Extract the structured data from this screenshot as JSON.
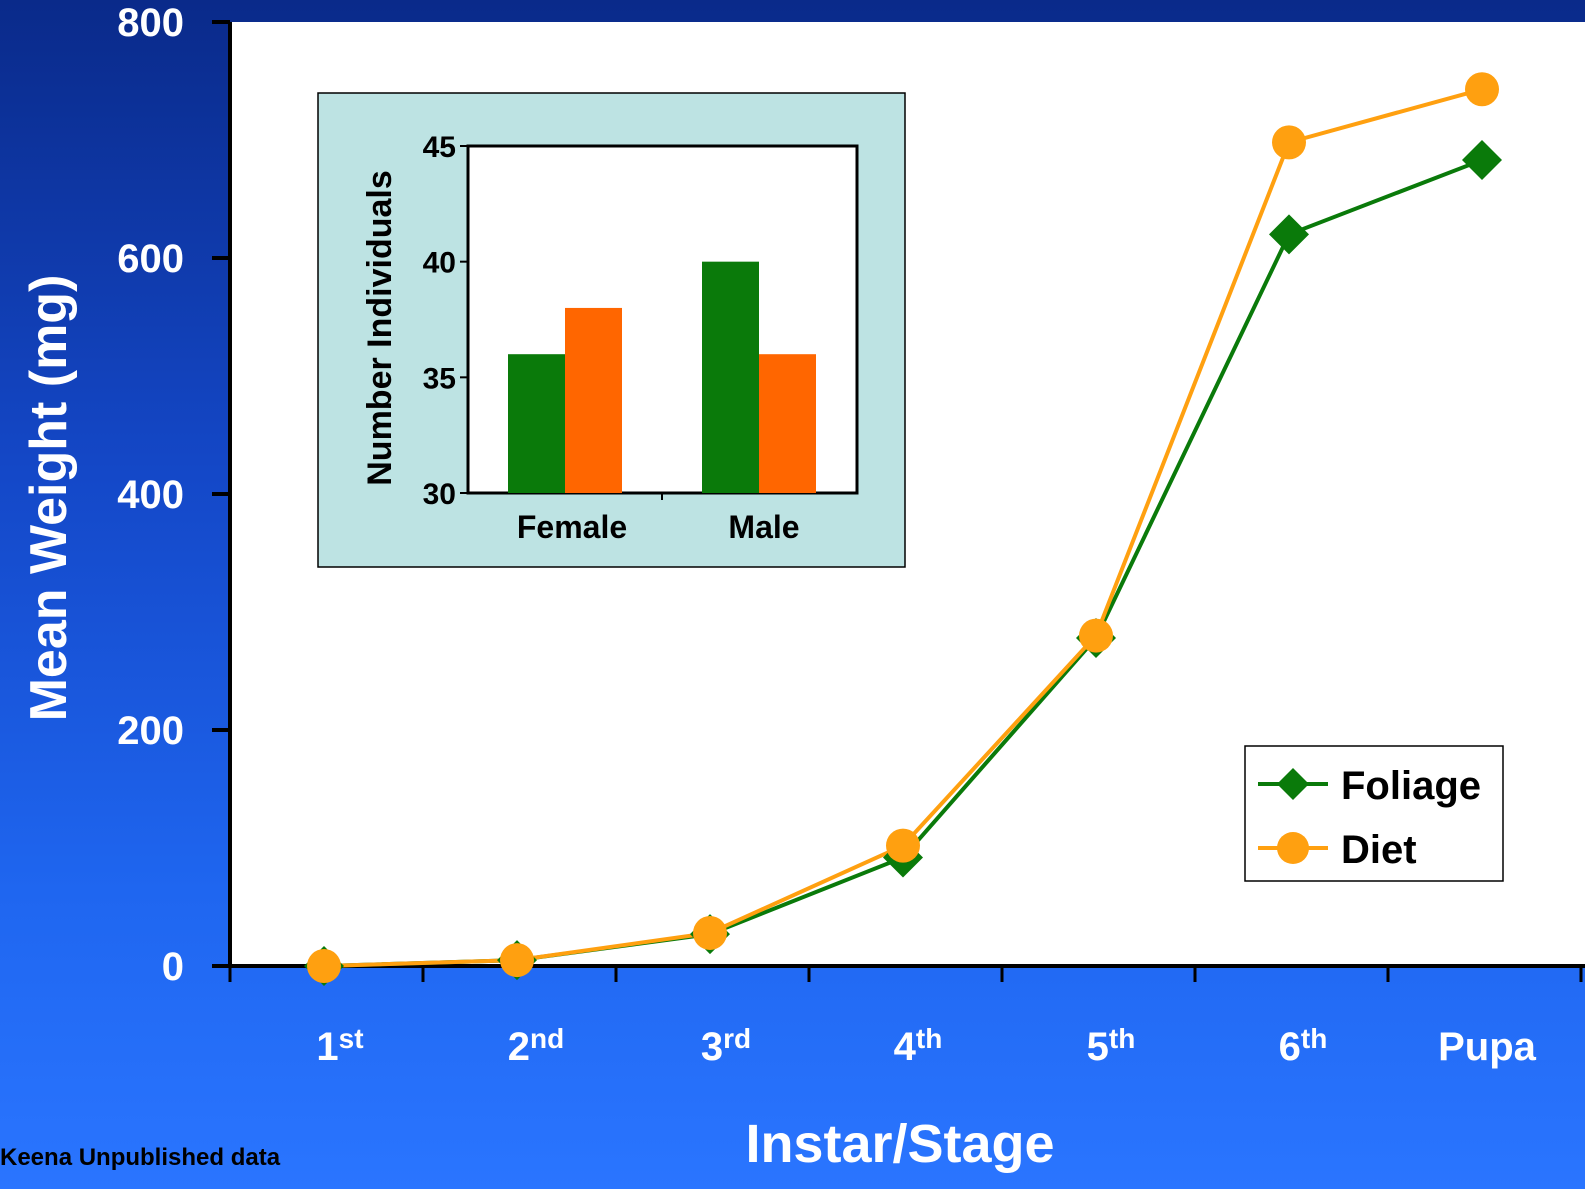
{
  "credit": "Keena Unpublished data",
  "colors": {
    "foliage": "#0a7a0a",
    "diet": "#ffa010",
    "inset_female_male_green": "#0a7a0a",
    "inset_orange": "#ff6600",
    "inset_bg": "#bde3e3"
  },
  "chart_data": [
    {
      "type": "line",
      "xlabel": "Instar/Stage",
      "ylabel": "Mean Weight (mg)",
      "categories": [
        {
          "base": "1",
          "sup": "st"
        },
        {
          "base": "2",
          "sup": "nd"
        },
        {
          "base": "3",
          "sup": "rd"
        },
        {
          "base": "4",
          "sup": "th"
        },
        {
          "base": "5",
          "sup": "th"
        },
        {
          "base": "6",
          "sup": "th"
        },
        {
          "base": "Pupa",
          "sup": ""
        }
      ],
      "yticks": [
        "0",
        "200",
        "400",
        "600",
        "800"
      ],
      "ylim": [
        0,
        800
      ],
      "grid": false,
      "legend_position": "bottom-right",
      "series": [
        {
          "name": "Foliage",
          "marker": "diamond",
          "values": [
            0,
            5,
            27,
            92,
            278,
            620,
            683
          ]
        },
        {
          "name": "Diet",
          "marker": "circle",
          "values": [
            0,
            5,
            28,
            102,
            280,
            698,
            743
          ]
        }
      ]
    },
    {
      "type": "bar",
      "ylabel": "Number Individuals",
      "categories": [
        "Female",
        "Male"
      ],
      "yticks": [
        "30",
        "35",
        "40",
        "45"
      ],
      "ylim": [
        30,
        45
      ],
      "legend_position": "none",
      "series": [
        {
          "values": [
            36,
            40
          ]
        },
        {
          "values": [
            38,
            36
          ]
        }
      ]
    }
  ]
}
